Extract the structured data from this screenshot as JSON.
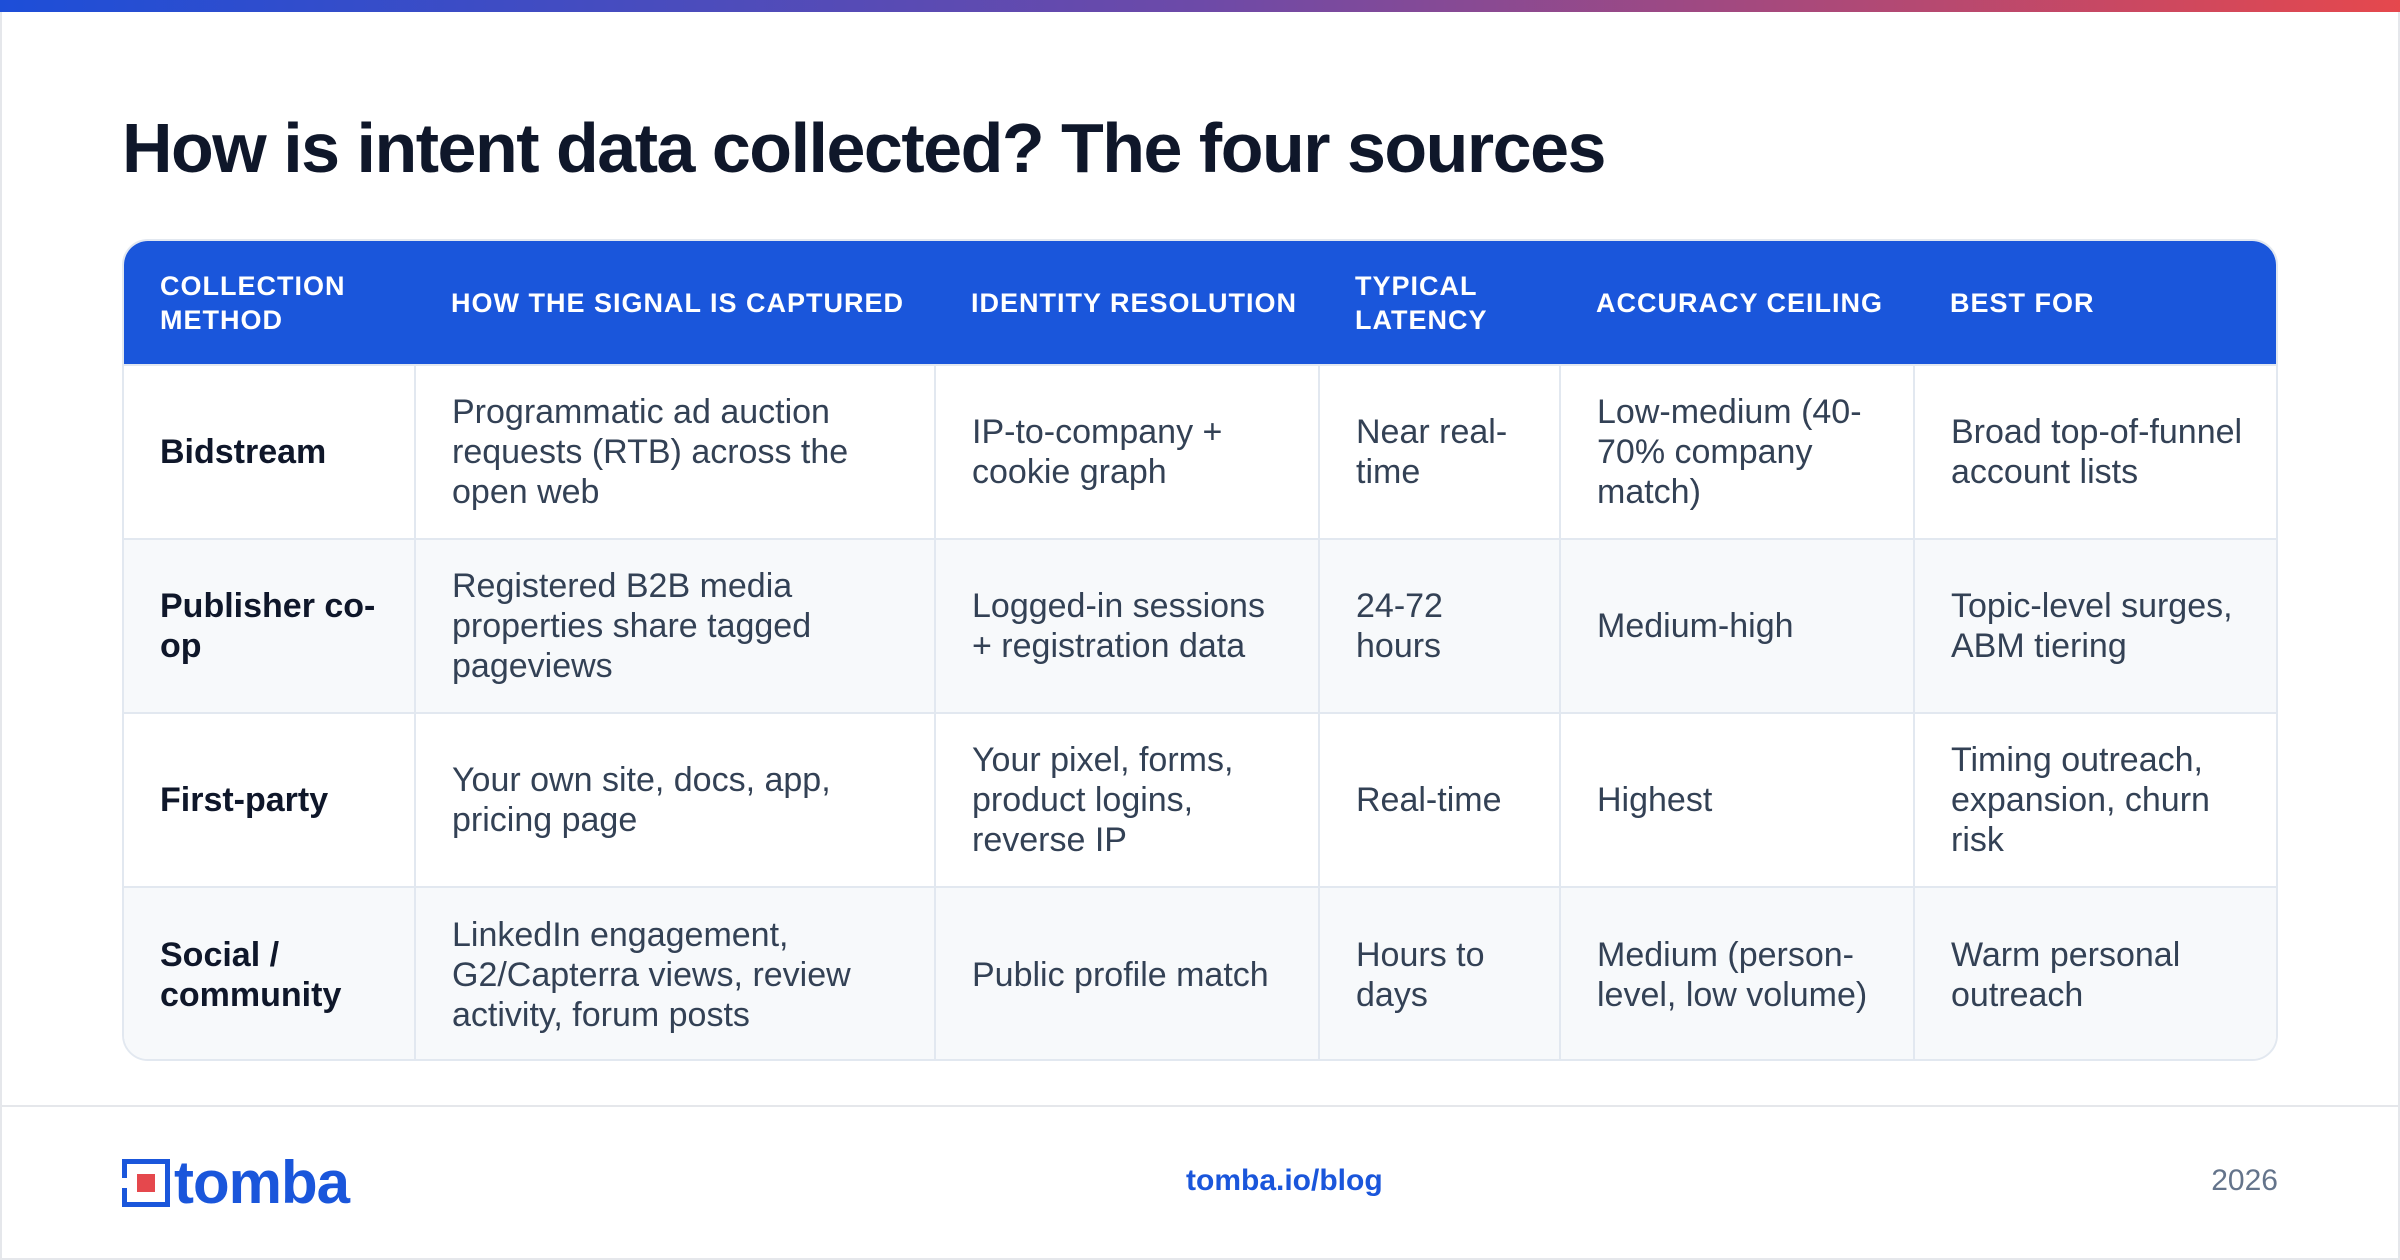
{
  "title": "How is intent data collected? The four sources",
  "colors": {
    "accent": "#1a56db",
    "brand_red": "#e5484d",
    "header_bg": "#1a56db"
  },
  "table": {
    "headers": [
      "COLLECTION METHOD",
      "HOW THE SIGNAL IS CAPTURED",
      "IDENTITY RESOLUTION",
      "TYPICAL LATENCY",
      "ACCURACY CEILING",
      "BEST FOR"
    ],
    "rows": [
      [
        "Bidstream",
        "Programmatic ad auction requests (RTB) across the open web",
        "IP-to-company + cookie graph",
        "Near real-time",
        "Low-medium (40-70% company match)",
        "Broad top-of-funnel account lists"
      ],
      [
        "Publisher co-op",
        "Registered B2B media properties share tagged pageviews",
        "Logged-in sessions + registration data",
        "24-72 hours",
        "Medium-high",
        "Topic-level surges, ABM tiering"
      ],
      [
        "First-party",
        "Your own site, docs, app, pricing page",
        "Your pixel, forms, product logins, reverse IP",
        "Real-time",
        "Highest",
        "Timing outreach, expansion, churn risk"
      ],
      [
        "Social / community",
        "LinkedIn engagement, G2/Capterra views, review activity, forum posts",
        "Public profile match",
        "Hours to days",
        "Medium (person-level, low volume)",
        "Warm personal outreach"
      ]
    ]
  },
  "footer": {
    "logo_text": "tomba",
    "logo_icon": "tomba-logo-icon",
    "link": "tomba.io/blog",
    "year": "2026"
  }
}
